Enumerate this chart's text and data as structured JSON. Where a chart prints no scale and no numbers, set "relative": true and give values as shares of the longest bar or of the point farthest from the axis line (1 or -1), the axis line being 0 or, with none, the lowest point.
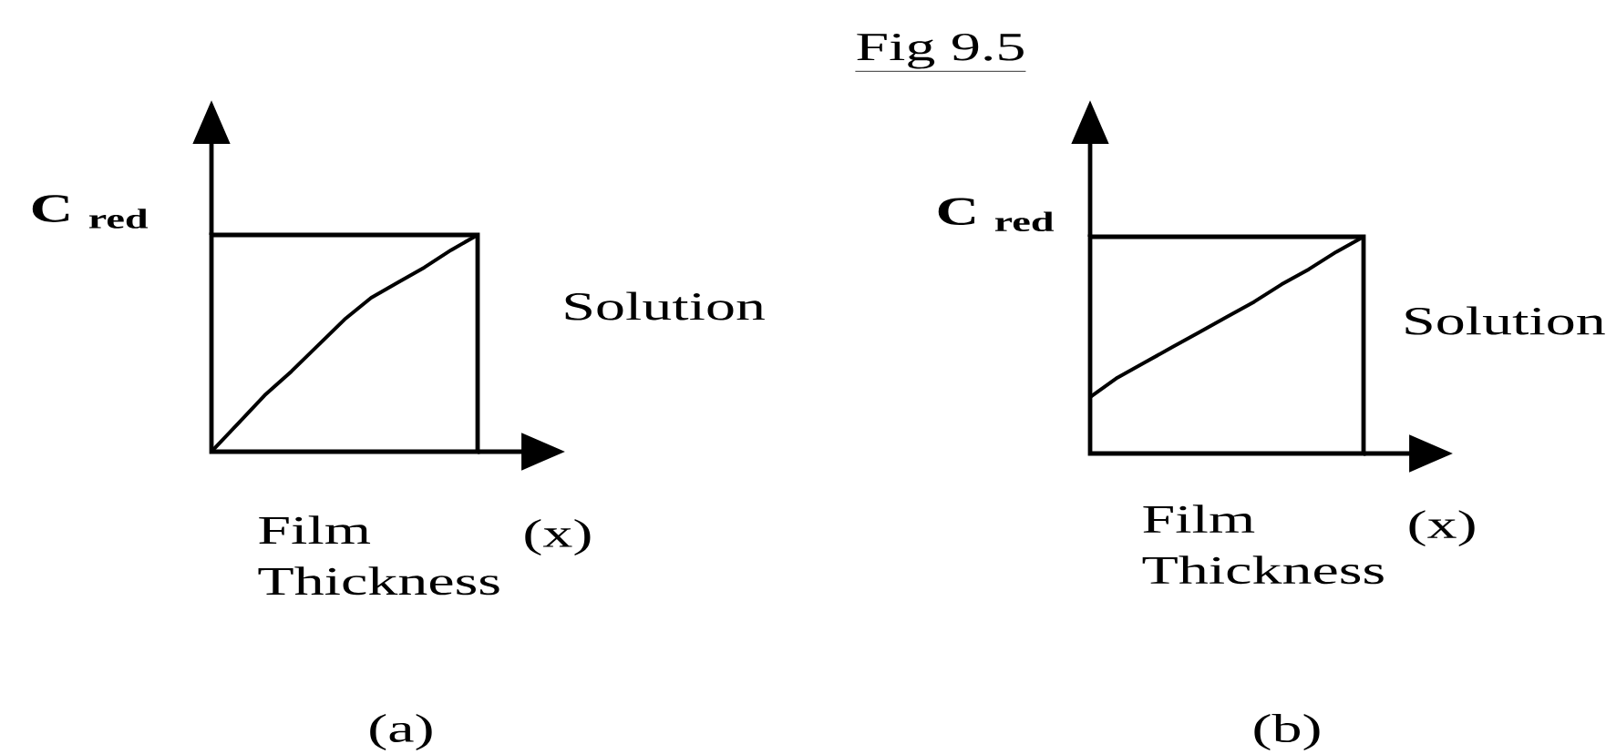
{
  "chart_data": [
    {
      "type": "line",
      "relative": true,
      "categories": [
        null,
        null,
        null,
        null,
        null,
        null,
        null,
        null,
        null,
        null,
        null
      ],
      "values": [
        0,
        0.13,
        0.26,
        0.37,
        0.49,
        0.61,
        0.71,
        0.78,
        0.85,
        0.93,
        1
      ],
      "color": "#000000",
      "ylabel": "C $_{red}$",
      "xlabel": "Film Thickness",
      "annotations": [
        "Solution",
        "(x)",
        "(a)"
      ]
    },
    {
      "type": "line",
      "relative": true,
      "title": "Fig 9.5",
      "categories": [
        null,
        null,
        null,
        null,
        null,
        null,
        null,
        null,
        null,
        null,
        null
      ],
      "values": [
        0.26,
        0.35,
        0.42,
        0.49,
        0.56,
        0.63,
        0.7,
        0.78,
        0.85,
        0.93,
        1
      ],
      "color": "#000000",
      "ylabel": "C $_{red}$",
      "xlabel": "Film Thickness",
      "annotations": [
        "Solution",
        "(x)",
        "(b)"
      ]
    }
  ]
}
